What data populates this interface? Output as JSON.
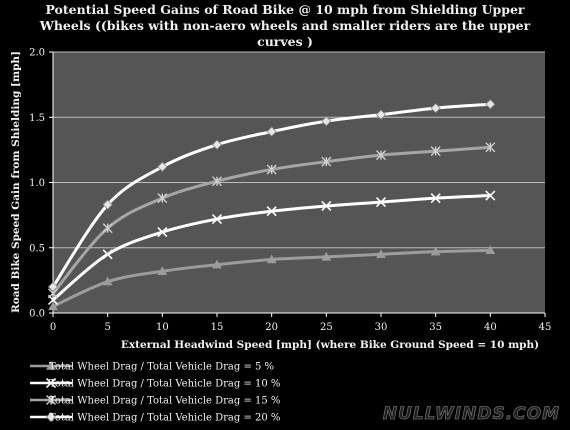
{
  "chart_data": {
    "type": "line",
    "title_lines": [
      "Potential Speed Gains of  Road Bike @ 10 mph from Shielding Upper",
      "Wheels ((bikes with non-aero wheels and smaller riders are the upper",
      "curves )"
    ],
    "xlabel": "External Headwind Speed [mph] (where Bike Ground Speed = 10 mph)",
    "ylabel": "Road Bike Speed Gain from  Shielding [mph]",
    "xlim": [
      0,
      45
    ],
    "ylim": [
      0,
      2.0
    ],
    "x_ticks": [
      0,
      5,
      10,
      15,
      20,
      25,
      30,
      35,
      40,
      45
    ],
    "y_ticks": [
      0.0,
      0.5,
      1.0,
      1.5,
      2.0
    ],
    "x_tick_labels": [
      "0",
      "5",
      "10",
      "15",
      "20",
      "25",
      "30",
      "35",
      "40",
      "45"
    ],
    "y_tick_labels": [
      "0.0",
      "0.5",
      "1.0",
      "1.5",
      "2.0"
    ],
    "grid": "horizontal",
    "plot_background": "#555555",
    "legend_position": "bottom-left",
    "x": [
      0,
      5,
      10,
      15,
      20,
      25,
      30,
      35,
      40
    ],
    "series": [
      {
        "name": "Total Wheel Drag / Total Vehicle Drag = 5 %",
        "values": [
          0.05,
          0.24,
          0.32,
          0.37,
          0.41,
          0.43,
          0.45,
          0.47,
          0.48
        ],
        "color": "#9c9c9c",
        "marker": "triangle"
      },
      {
        "name": "Total Wheel Drag / Total Vehicle Drag = 10 %",
        "values": [
          0.1,
          0.45,
          0.62,
          0.72,
          0.78,
          0.82,
          0.85,
          0.88,
          0.9
        ],
        "color": "#ffffff",
        "marker": "x"
      },
      {
        "name": "Total Wheel Drag / Total Vehicle Drag = 15 %",
        "values": [
          0.15,
          0.65,
          0.88,
          1.01,
          1.1,
          1.16,
          1.21,
          1.24,
          1.27
        ],
        "color": "#a6a6a6",
        "marker": "asterisk"
      },
      {
        "name": "Total Wheel Drag / Total Vehicle Drag = 20 %",
        "values": [
          0.2,
          0.83,
          1.12,
          1.29,
          1.39,
          1.47,
          1.52,
          1.57,
          1.6
        ],
        "color": "#ffffff",
        "marker": "diamond"
      }
    ]
  },
  "watermark": "NULLWINDS.COM"
}
